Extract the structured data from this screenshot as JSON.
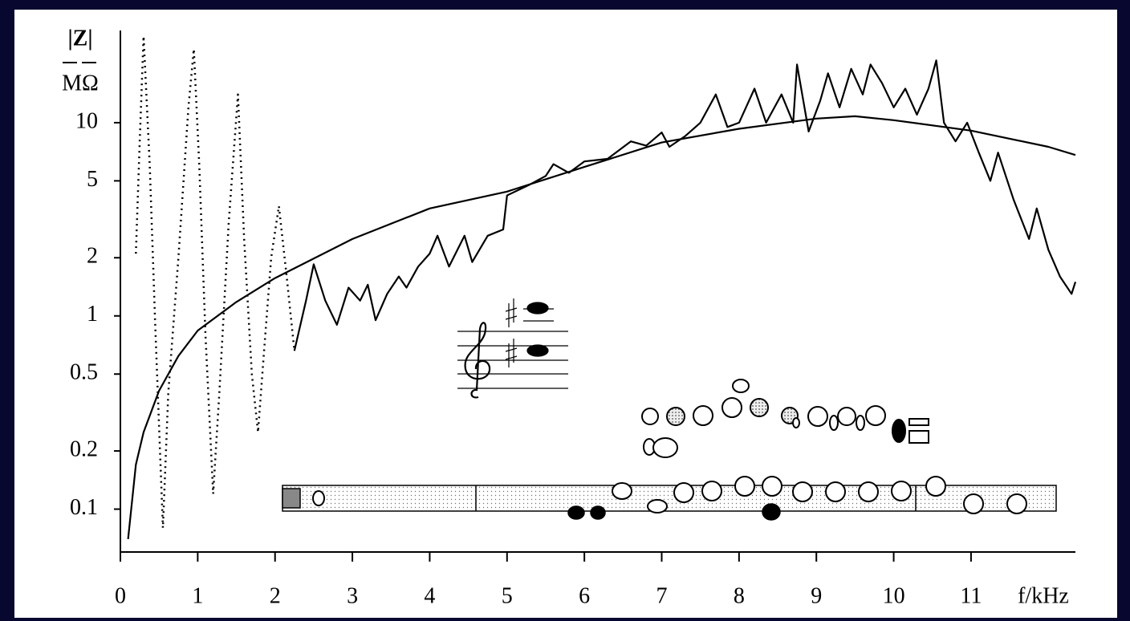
{
  "chart_data": {
    "type": "line",
    "ylabel": {
      "numerator": "|Z|",
      "denominator": "MΩ"
    },
    "xlabel": "f/kHz",
    "xlim": [
      0,
      12.35
    ],
    "ylim": [
      0.06,
      30
    ],
    "yscale": "log",
    "xticks": [
      0,
      1,
      2,
      3,
      4,
      5,
      6,
      7,
      8,
      9,
      10,
      11
    ],
    "yticks": [
      0.1,
      0.2,
      0.5,
      1,
      2,
      5,
      10
    ],
    "grid": false,
    "series": [
      {
        "color": "#000000",
        "style": "dotted",
        "x": [
          0.2,
          0.25,
          0.3,
          0.38,
          0.45,
          0.55,
          0.62,
          0.75,
          0.88,
          0.95,
          1.02,
          1.1,
          1.2,
          1.28,
          1.4,
          1.52,
          1.6,
          1.7,
          1.78,
          1.85,
          1.95,
          2.05,
          2.15,
          2.25
        ],
        "values": [
          2.1,
          8,
          28,
          6,
          0.9,
          0.08,
          0.4,
          2,
          12,
          24,
          6,
          0.8,
          0.12,
          0.4,
          3,
          14,
          2.5,
          0.5,
          0.25,
          0.6,
          2,
          3.7,
          1.6,
          0.66
        ]
      },
      {
        "color": "#000000",
        "style": "solid",
        "x": [
          2.25,
          2.4,
          2.5,
          2.65,
          2.8,
          2.95,
          3.1,
          3.2,
          3.3,
          3.45,
          3.6,
          3.7,
          3.85,
          4.0,
          4.1,
          4.25,
          4.45,
          4.55,
          4.75,
          4.95,
          5.0,
          5.3,
          5.5,
          5.6,
          5.8,
          6.0,
          6.3,
          6.6,
          6.8,
          7.0,
          7.1,
          7.3,
          7.5,
          7.7,
          7.85,
          8.0,
          8.2,
          8.35,
          8.55,
          8.7,
          8.75,
          8.9,
          9.05,
          9.15,
          9.3,
          9.45,
          9.6,
          9.7,
          9.85,
          10.0,
          10.15,
          10.3,
          10.45,
          10.55,
          10.65,
          10.8,
          10.95,
          11.1,
          11.25,
          11.35,
          11.55,
          11.75,
          11.85,
          12.0,
          12.15,
          12.3,
          12.35
        ],
        "values": [
          0.66,
          1.2,
          1.85,
          1.2,
          0.9,
          1.4,
          1.2,
          1.45,
          0.95,
          1.3,
          1.6,
          1.4,
          1.8,
          2.1,
          2.6,
          1.8,
          2.6,
          1.9,
          2.6,
          2.8,
          4.2,
          4.8,
          5.3,
          6.1,
          5.5,
          6.3,
          6.5,
          8.0,
          7.6,
          8.9,
          7.5,
          8.5,
          10,
          14,
          9.5,
          10,
          15,
          10,
          14,
          10,
          20,
          9,
          13,
          18,
          12,
          19,
          14,
          20,
          16,
          12,
          15,
          11,
          15,
          21,
          10,
          8,
          10,
          7,
          5,
          7,
          4,
          2.5,
          3.6,
          2.2,
          1.6,
          1.3,
          1.5
        ]
      },
      {
        "color": "#000000",
        "style": "solid",
        "x": [
          0.1,
          0.2,
          0.3,
          0.5,
          0.75,
          1.0,
          1.5,
          2.0,
          3.0,
          4.0,
          5.0,
          6.0,
          7.0,
          8.0,
          9.0,
          9.5,
          10.0,
          11.0,
          12.0,
          12.35
        ],
        "values": [
          0.07,
          0.17,
          0.25,
          0.41,
          0.62,
          0.84,
          1.18,
          1.57,
          2.5,
          3.6,
          4.4,
          5.9,
          7.9,
          9.3,
          10.5,
          10.8,
          10.3,
          9.1,
          7.5,
          6.8
        ]
      }
    ]
  }
}
